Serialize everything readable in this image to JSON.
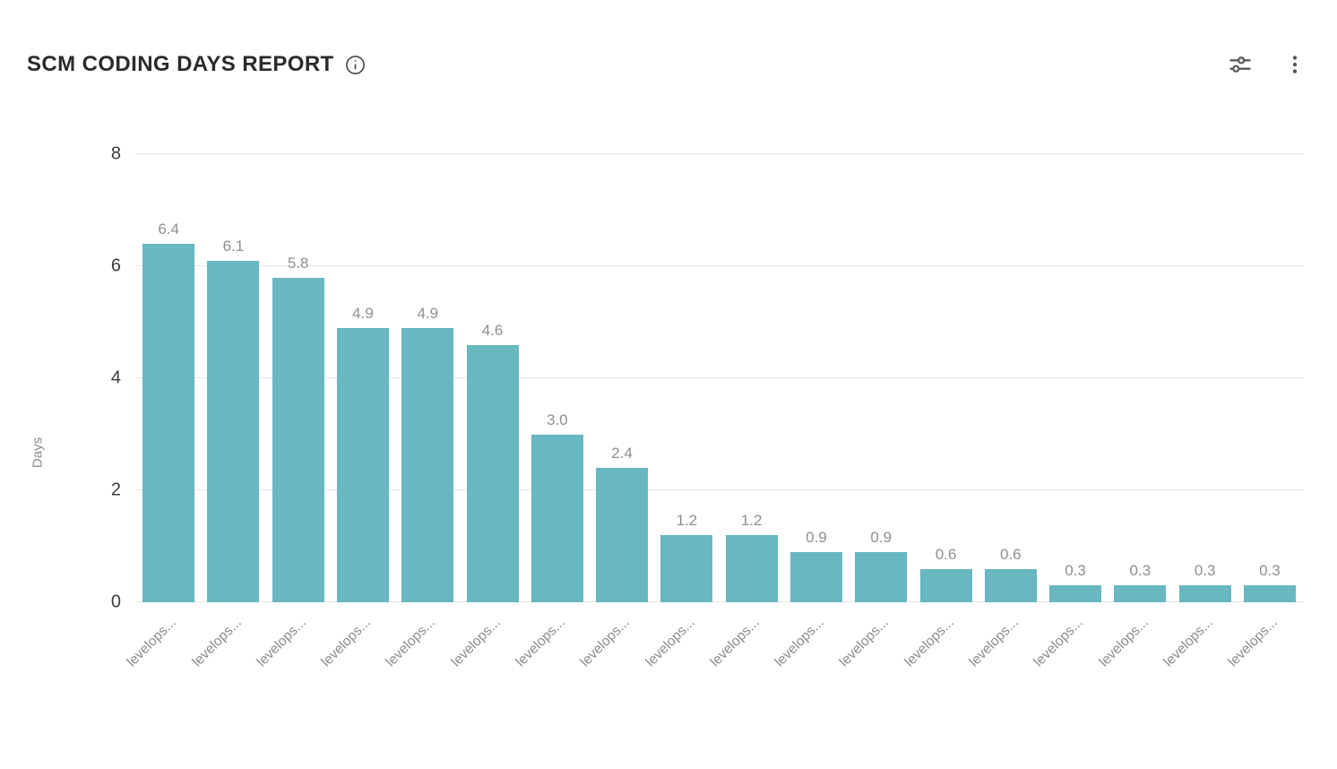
{
  "header": {
    "title": "SCM CODING DAYS REPORT"
  },
  "icons": {
    "info": "info-icon",
    "filter": "filter-sliders-icon",
    "menu": "kebab-menu-icon"
  },
  "colors": {
    "bar": "#68b7c1",
    "grid": "#e9e9e9",
    "value_label": "#8f8f8f",
    "axis_text": "#3d3d3d",
    "x_label": "#8c8c8c",
    "title": "#2b2b2b",
    "icon": "#595959"
  },
  "chart_data": {
    "type": "bar",
    "title": "SCM CODING DAYS REPORT",
    "xlabel": "",
    "ylabel": "Days",
    "ylim": [
      0,
      8
    ],
    "yticks": [
      0,
      2,
      4,
      6,
      8
    ],
    "grid": true,
    "legend": "none",
    "categories": [
      "levelops...",
      "levelops...",
      "levelops...",
      "levelops...",
      "levelops...",
      "levelops...",
      "levelops...",
      "levelops...",
      "levelops...",
      "levelops...",
      "levelops...",
      "levelops...",
      "levelops...",
      "levelops...",
      "levelops...",
      "levelops...",
      "levelops...",
      "levelops..."
    ],
    "values": [
      6.4,
      6.1,
      5.8,
      4.9,
      4.9,
      4.6,
      3.0,
      2.4,
      1.2,
      1.2,
      0.9,
      0.9,
      0.6,
      0.6,
      0.3,
      0.3,
      0.3,
      0.3
    ],
    "value_labels": [
      "6.4",
      "6.1",
      "5.8",
      "4.9",
      "4.9",
      "4.6",
      "3.0",
      "2.4",
      "1.2",
      "1.2",
      "0.9",
      "0.9",
      "0.6",
      "0.6",
      "0.3",
      "0.3",
      "0.3",
      "0.3"
    ]
  }
}
